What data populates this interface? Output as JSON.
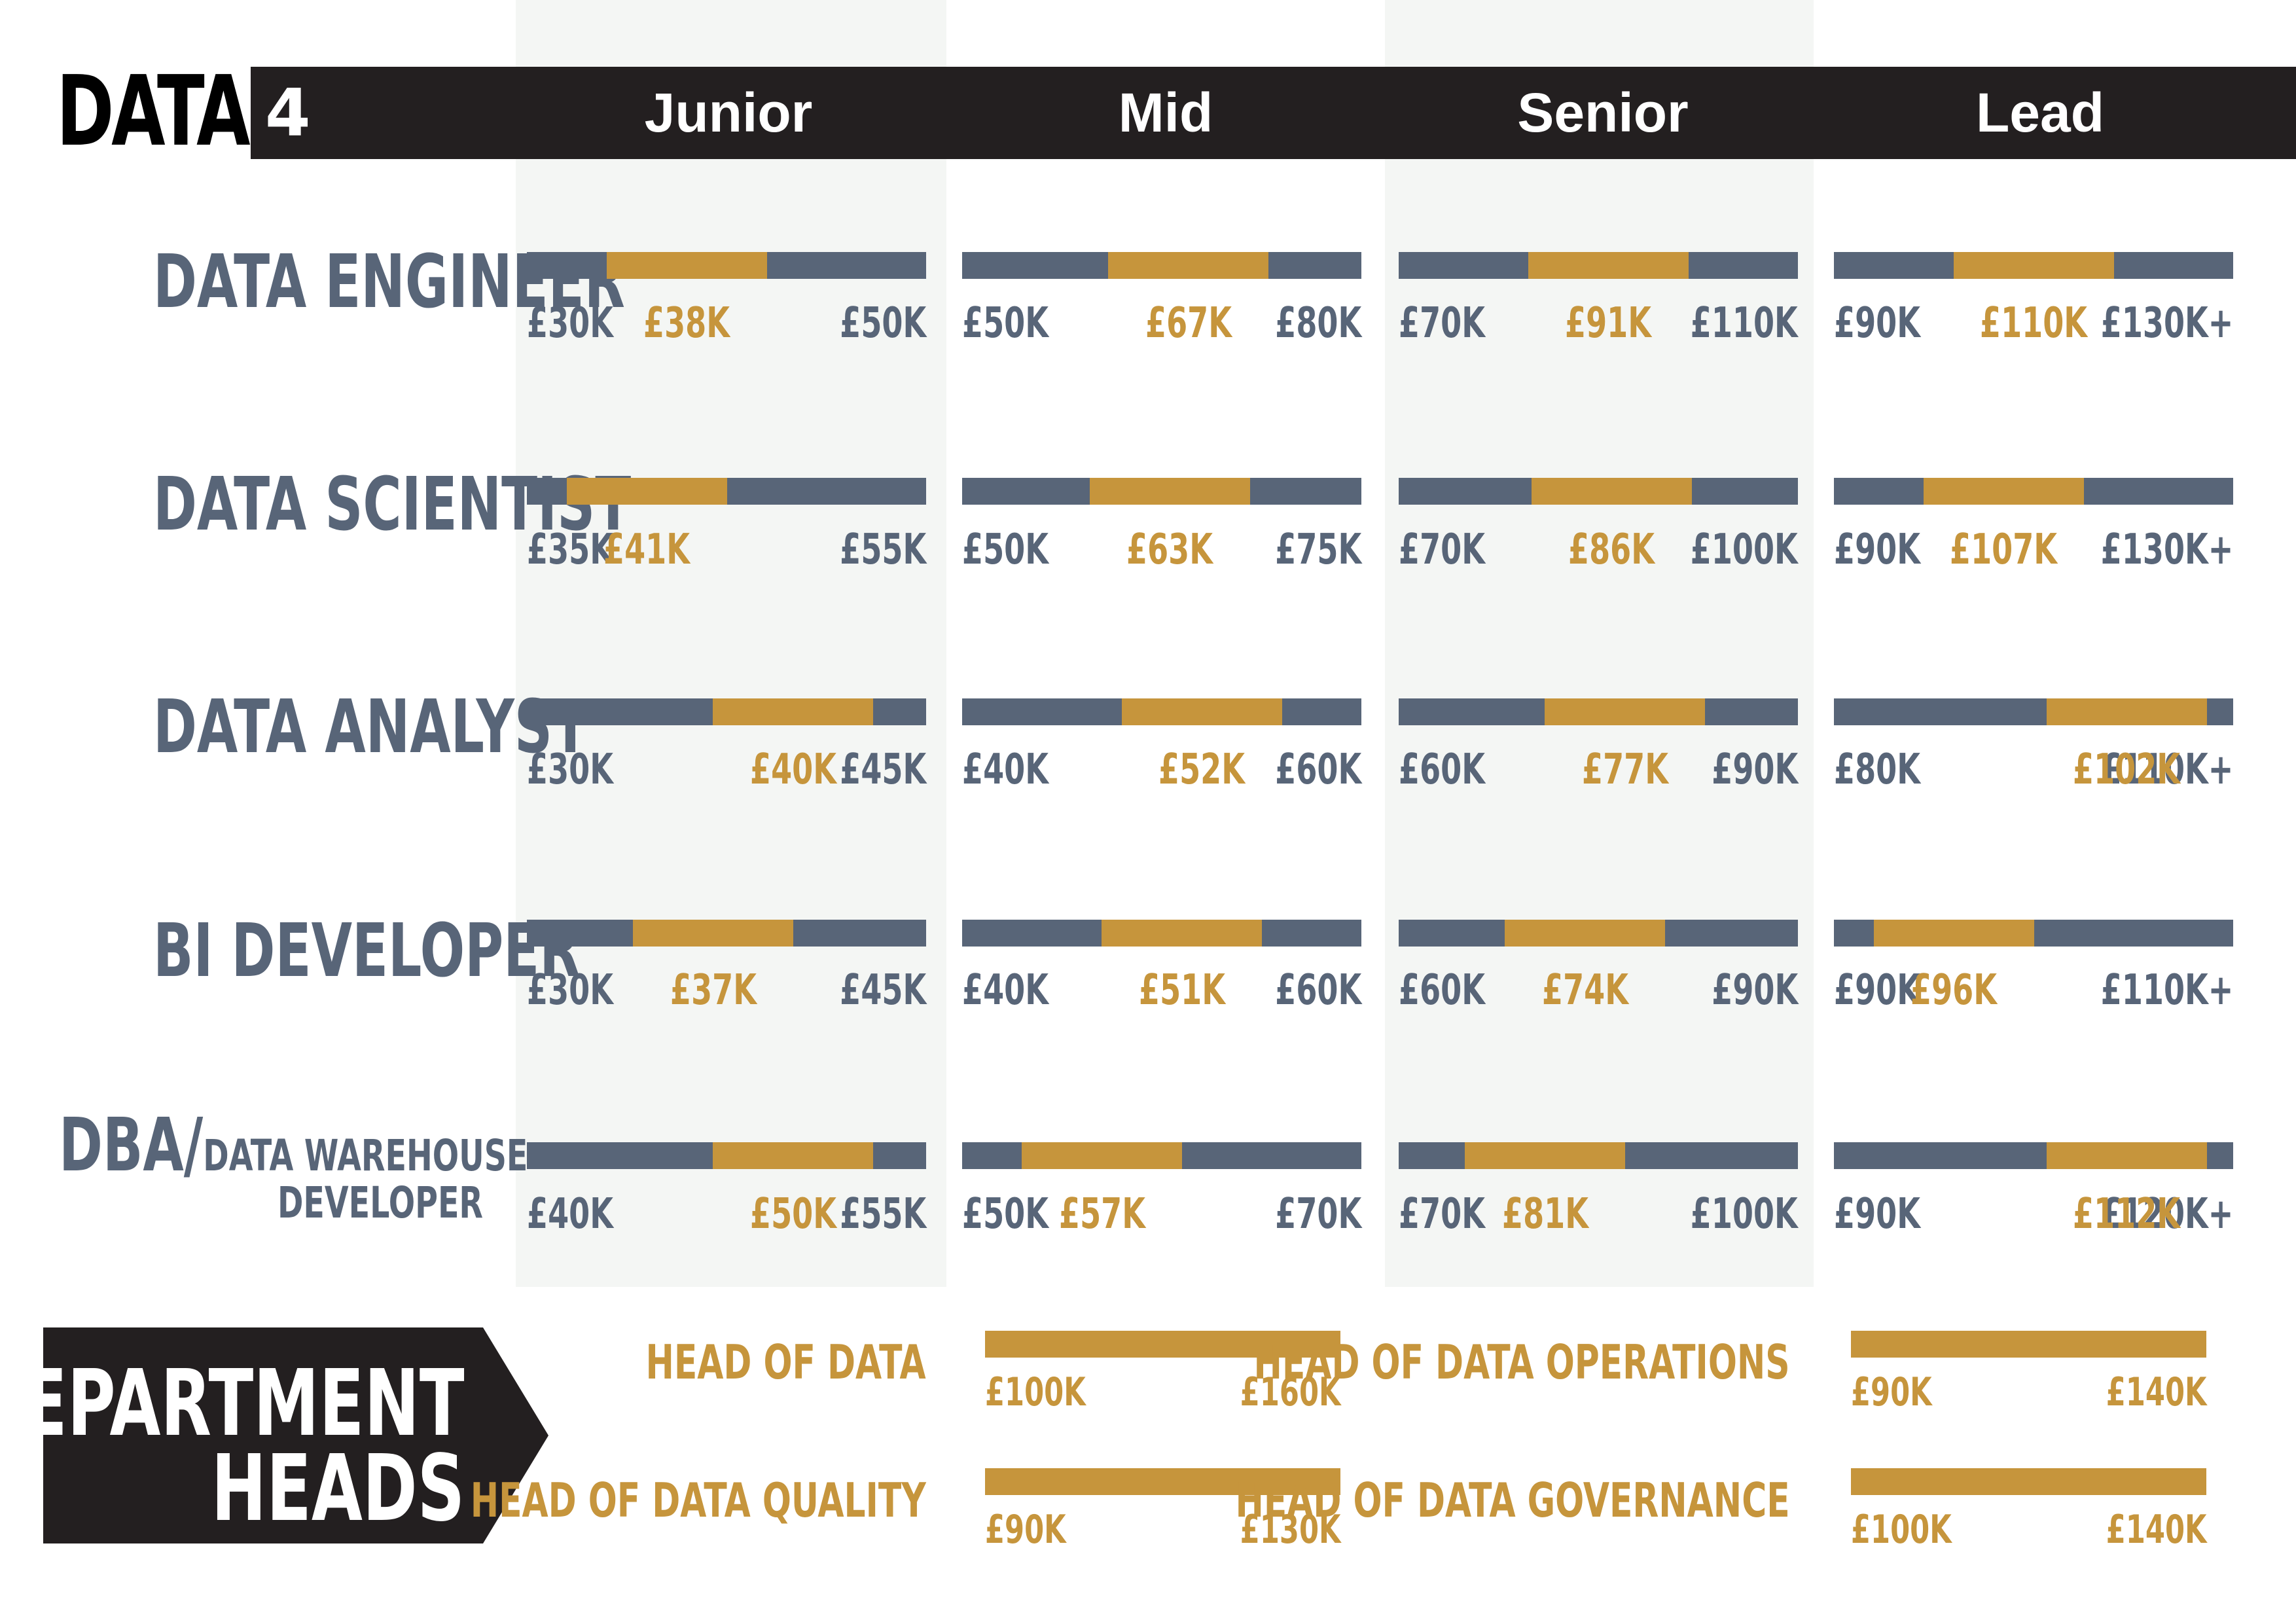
{
  "header": {
    "brand": "DATA",
    "brand_number": "4"
  },
  "department_heads_label": {
    "line1": "DEPARTMENT",
    "line2": "HEADS"
  },
  "chart_data": {
    "type": "bar",
    "title": "",
    "levels": [
      "Junior",
      "Mid",
      "Senior",
      "Lead"
    ],
    "roles": [
      {
        "name": "DATA ENGINEER",
        "ranges": [
          {
            "min": 30,
            "avg": 38,
            "max": 50,
            "min_label": "£30K",
            "avg_label": "£38K",
            "max_label": "£50K"
          },
          {
            "min": 50,
            "avg": 67,
            "max": 80,
            "min_label": "£50K",
            "avg_label": "£67K",
            "max_label": "£80K"
          },
          {
            "min": 70,
            "avg": 91,
            "max": 110,
            "min_label": "£70K",
            "avg_label": "£91K",
            "max_label": "£110K"
          },
          {
            "min": 90,
            "avg": 110,
            "max": 130,
            "min_label": "£90K",
            "avg_label": "£110K",
            "max_label": "£130K+"
          }
        ]
      },
      {
        "name": "DATA SCIENTIST",
        "ranges": [
          {
            "min": 35,
            "avg": 41,
            "max": 55,
            "min_label": "£35K",
            "avg_label": "£41K",
            "max_label": "£55K"
          },
          {
            "min": 50,
            "avg": 63,
            "max": 75,
            "min_label": "£50K",
            "avg_label": "£63K",
            "max_label": "£75K"
          },
          {
            "min": 70,
            "avg": 86,
            "max": 100,
            "min_label": "£70K",
            "avg_label": "£86K",
            "max_label": "£100K"
          },
          {
            "min": 90,
            "avg": 107,
            "max": 130,
            "min_label": "£90K",
            "avg_label": "£107K",
            "max_label": "£130K+"
          }
        ]
      },
      {
        "name": "DATA ANALYST",
        "ranges": [
          {
            "min": 30,
            "avg": 40,
            "max": 45,
            "min_label": "£30K",
            "avg_label": "£40K",
            "max_label": "£45K"
          },
          {
            "min": 40,
            "avg": 52,
            "max": 60,
            "min_label": "£40K",
            "avg_label": "£52K",
            "max_label": "£60K"
          },
          {
            "min": 60,
            "avg": 77,
            "max": 90,
            "min_label": "£60K",
            "avg_label": "£77K",
            "max_label": "£90K"
          },
          {
            "min": 80,
            "avg": 102,
            "max": 110,
            "min_label": "£80K",
            "avg_label": "£102K",
            "max_label": "£110K+"
          }
        ]
      },
      {
        "name": "BI DEVELOPER",
        "ranges": [
          {
            "min": 30,
            "avg": 37,
            "max": 45,
            "min_label": "£30K",
            "avg_label": "£37K",
            "max_label": "£45K"
          },
          {
            "min": 40,
            "avg": 51,
            "max": 60,
            "min_label": "£40K",
            "avg_label": "£51K",
            "max_label": "£60K"
          },
          {
            "min": 60,
            "avg": 74,
            "max": 90,
            "min_label": "£60K",
            "avg_label": "£74K",
            "max_label": "£90K"
          },
          {
            "min": 90,
            "avg": 96,
            "max": 110,
            "min_label": "£90K",
            "avg_label": "£96K",
            "max_label": "£110K+"
          }
        ]
      },
      {
        "name": "DBA/",
        "name_sub_line1": "DATA WAREHOUSE",
        "name_sub_line2": "DEVELOPER",
        "ranges": [
          {
            "min": 40,
            "avg": 50,
            "max": 55,
            "min_label": "£40K",
            "avg_label": "£50K",
            "max_label": "£55K"
          },
          {
            "min": 50,
            "avg": 57,
            "max": 70,
            "min_label": "£50K",
            "avg_label": "£57K",
            "max_label": "£70K"
          },
          {
            "min": 70,
            "avg": 81,
            "max": 100,
            "min_label": "£70K",
            "avg_label": "£81K",
            "max_label": "£100K"
          },
          {
            "min": 90,
            "avg": 112,
            "max": 120,
            "min_label": "£90K",
            "avg_label": "£112K",
            "max_label": "£120K+"
          }
        ]
      }
    ],
    "department_heads": [
      {
        "title": "HEAD OF DATA",
        "min": 100,
        "max": 160,
        "min_label": "£100K",
        "max_label": "£160K"
      },
      {
        "title": "HEAD OF DATA OPERATIONS",
        "min": 90,
        "max": 140,
        "min_label": "£90K",
        "max_label": "£140K"
      },
      {
        "title": "HEAD OF DATA QUALITY",
        "min": 90,
        "max": 130,
        "min_label": "£90K",
        "max_label": "£130K"
      },
      {
        "title": "HEAD OF DATA GOVERNANCE",
        "min": 100,
        "max": 140,
        "min_label": "£100K",
        "max_label": "£140K"
      }
    ],
    "colors": {
      "range_bar": "#586578",
      "average": "#c6953c",
      "header_bg": "#231f20"
    }
  }
}
